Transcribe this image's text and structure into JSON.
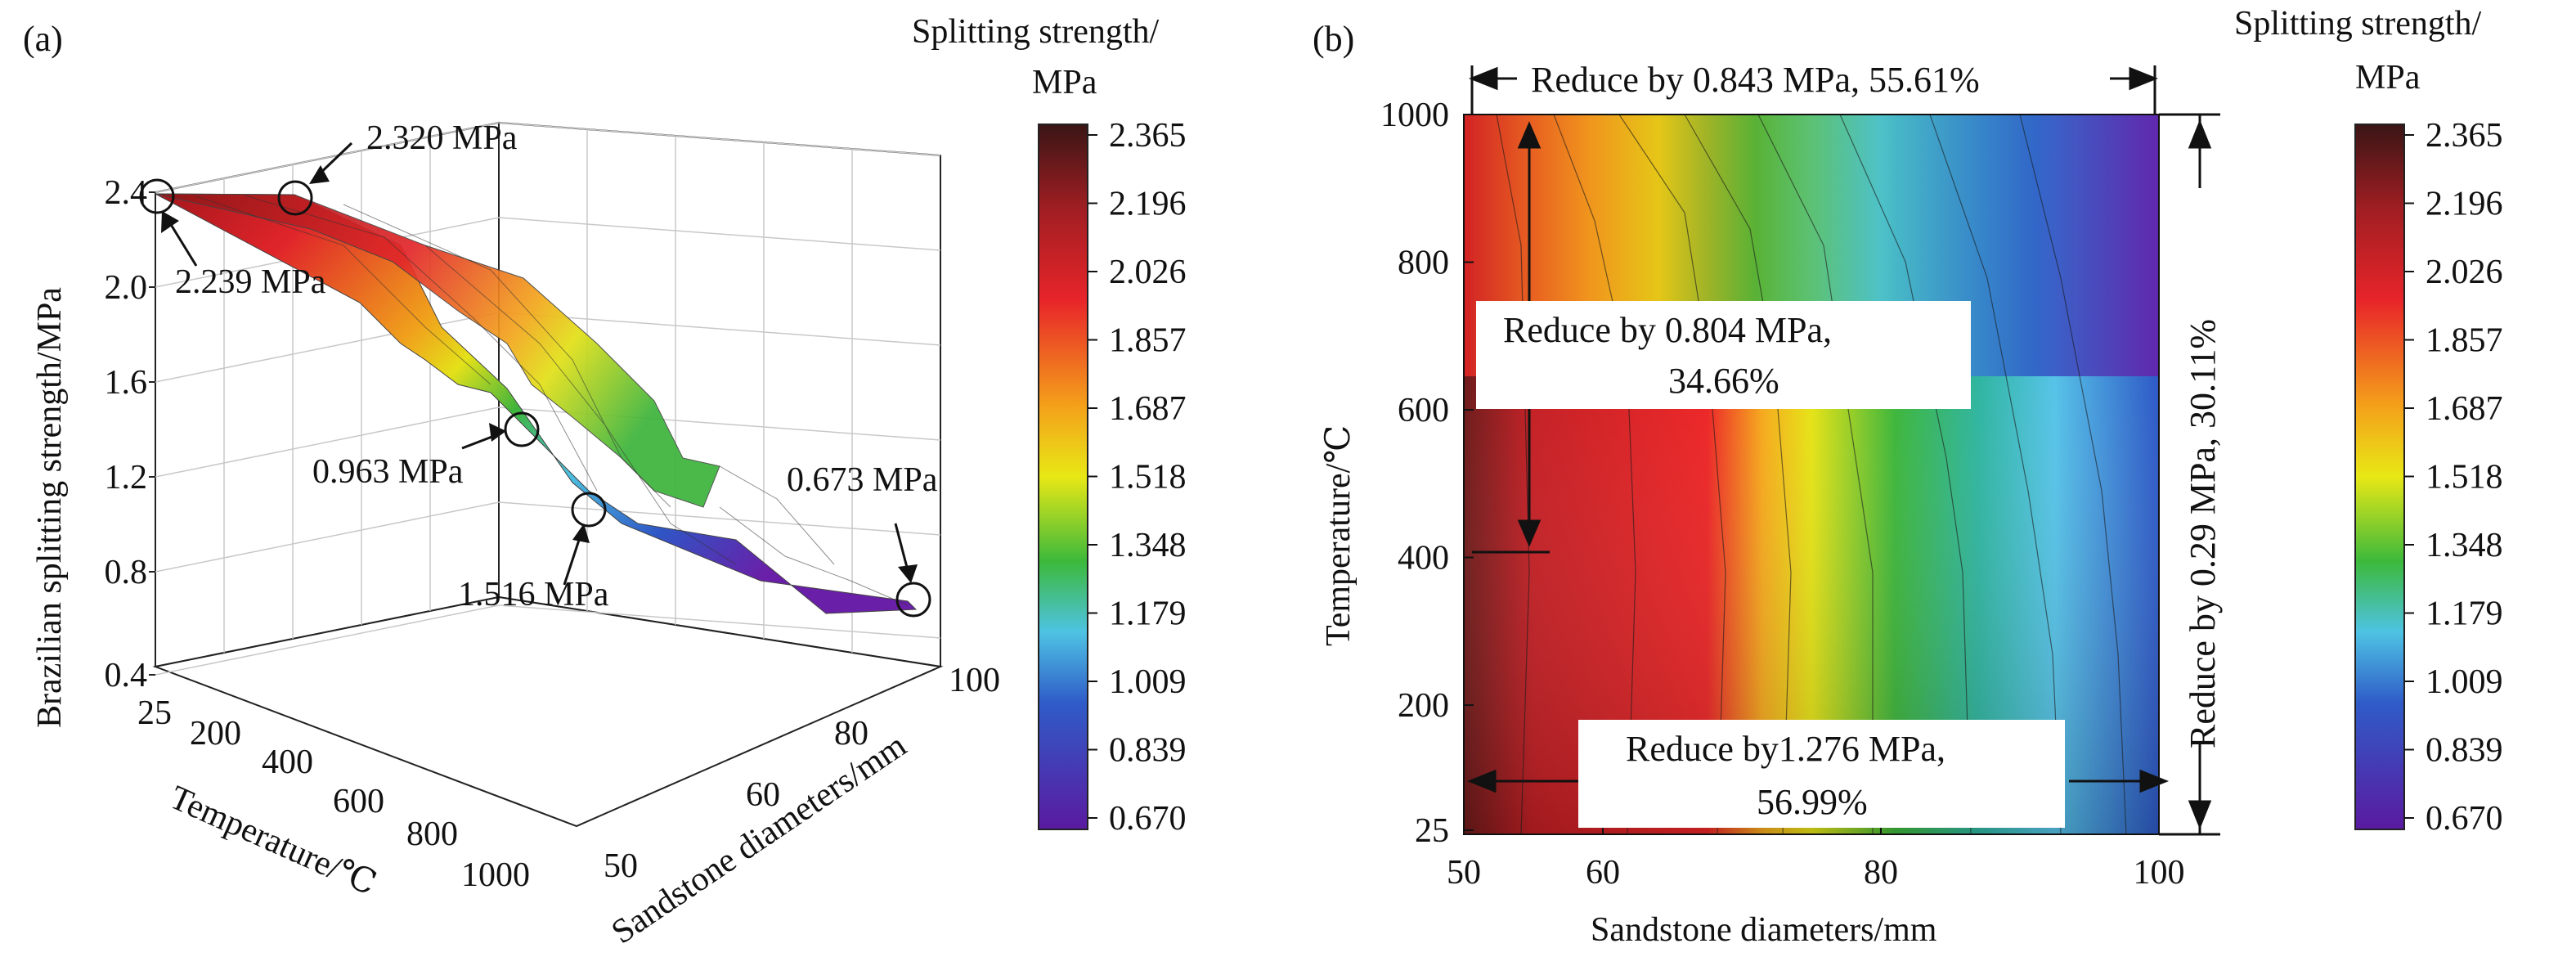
{
  "chart_data": [
    {
      "panel": "(a)",
      "type": "surface3d",
      "xlabel": "Temperature/℃",
      "ylabel": "Sandstone diameters/mm",
      "zlabel": "Brazilian splitting strength/MPa",
      "x_ticks": [
        "25",
        "200",
        "400",
        "600",
        "800",
        "1000"
      ],
      "y_ticks": [
        "50",
        "60",
        "80",
        "100"
      ],
      "z_ticks": [
        "0.4",
        "0.8",
        "1.2",
        "1.6",
        "2.0",
        "2.4"
      ],
      "zlim": [
        0.4,
        2.4
      ],
      "colorbar": {
        "title_line1": "Splitting strength/",
        "title_line2": "MPa",
        "ticks": [
          "2.365",
          "2.196",
          "2.026",
          "1.857",
          "1.687",
          "1.518",
          "1.348",
          "1.179",
          "1.009",
          "0.839",
          "0.670"
        ]
      },
      "surface": {
        "temperature": [
          25,
          200,
          400,
          600,
          800,
          1000
        ],
        "diameter": [
          50,
          60,
          80,
          100
        ],
        "z_rows_by_temperature": [
          [
            2.239,
            2.15,
            1.35,
            0.95
          ],
          [
            2.28,
            2.18,
            1.5,
            0.92
          ],
          [
            2.3,
            2.15,
            1.6,
            0.85
          ],
          [
            2.31,
            2.05,
            1.4,
            0.78
          ],
          [
            2.32,
            1.7,
            1.2,
            0.72
          ],
          [
            2.32,
            1.516,
            0.963,
            0.673
          ]
        ]
      },
      "annotations": [
        {
          "text": "2.320 MPa"
        },
        {
          "text": "2.239 MPa"
        },
        {
          "text": "0.963 MPa"
        },
        {
          "text": "1.516 MPa"
        },
        {
          "text": "0.673 MPa"
        }
      ]
    },
    {
      "panel": "(b)",
      "type": "heatmap",
      "xlabel": "Sandstone diameters/mm",
      "ylabel": "Temperature/℃",
      "x_ticks": [
        "50",
        "60",
        "80",
        "100"
      ],
      "y_ticks": [
        "25",
        "200",
        "400",
        "600",
        "800",
        "1000"
      ],
      "colorbar": {
        "title_line1": "Splitting strength/",
        "title_line2": "MPa",
        "ticks": [
          "2.365",
          "2.196",
          "2.026",
          "1.857",
          "1.687",
          "1.518",
          "1.348",
          "1.179",
          "1.009",
          "0.839",
          "0.670"
        ]
      },
      "annotations": [
        {
          "text": "Reduce by 0.843 MPa, 55.61%"
        },
        {
          "text_line1": "Reduce by 0.804 MPa,",
          "text_line2": "34.66%"
        },
        {
          "text_line1": "Reduce by1.276 MPa,",
          "text_line2": "56.99%"
        },
        {
          "text": "Reduce by 0.29 MPa, 30.11%"
        }
      ]
    }
  ]
}
